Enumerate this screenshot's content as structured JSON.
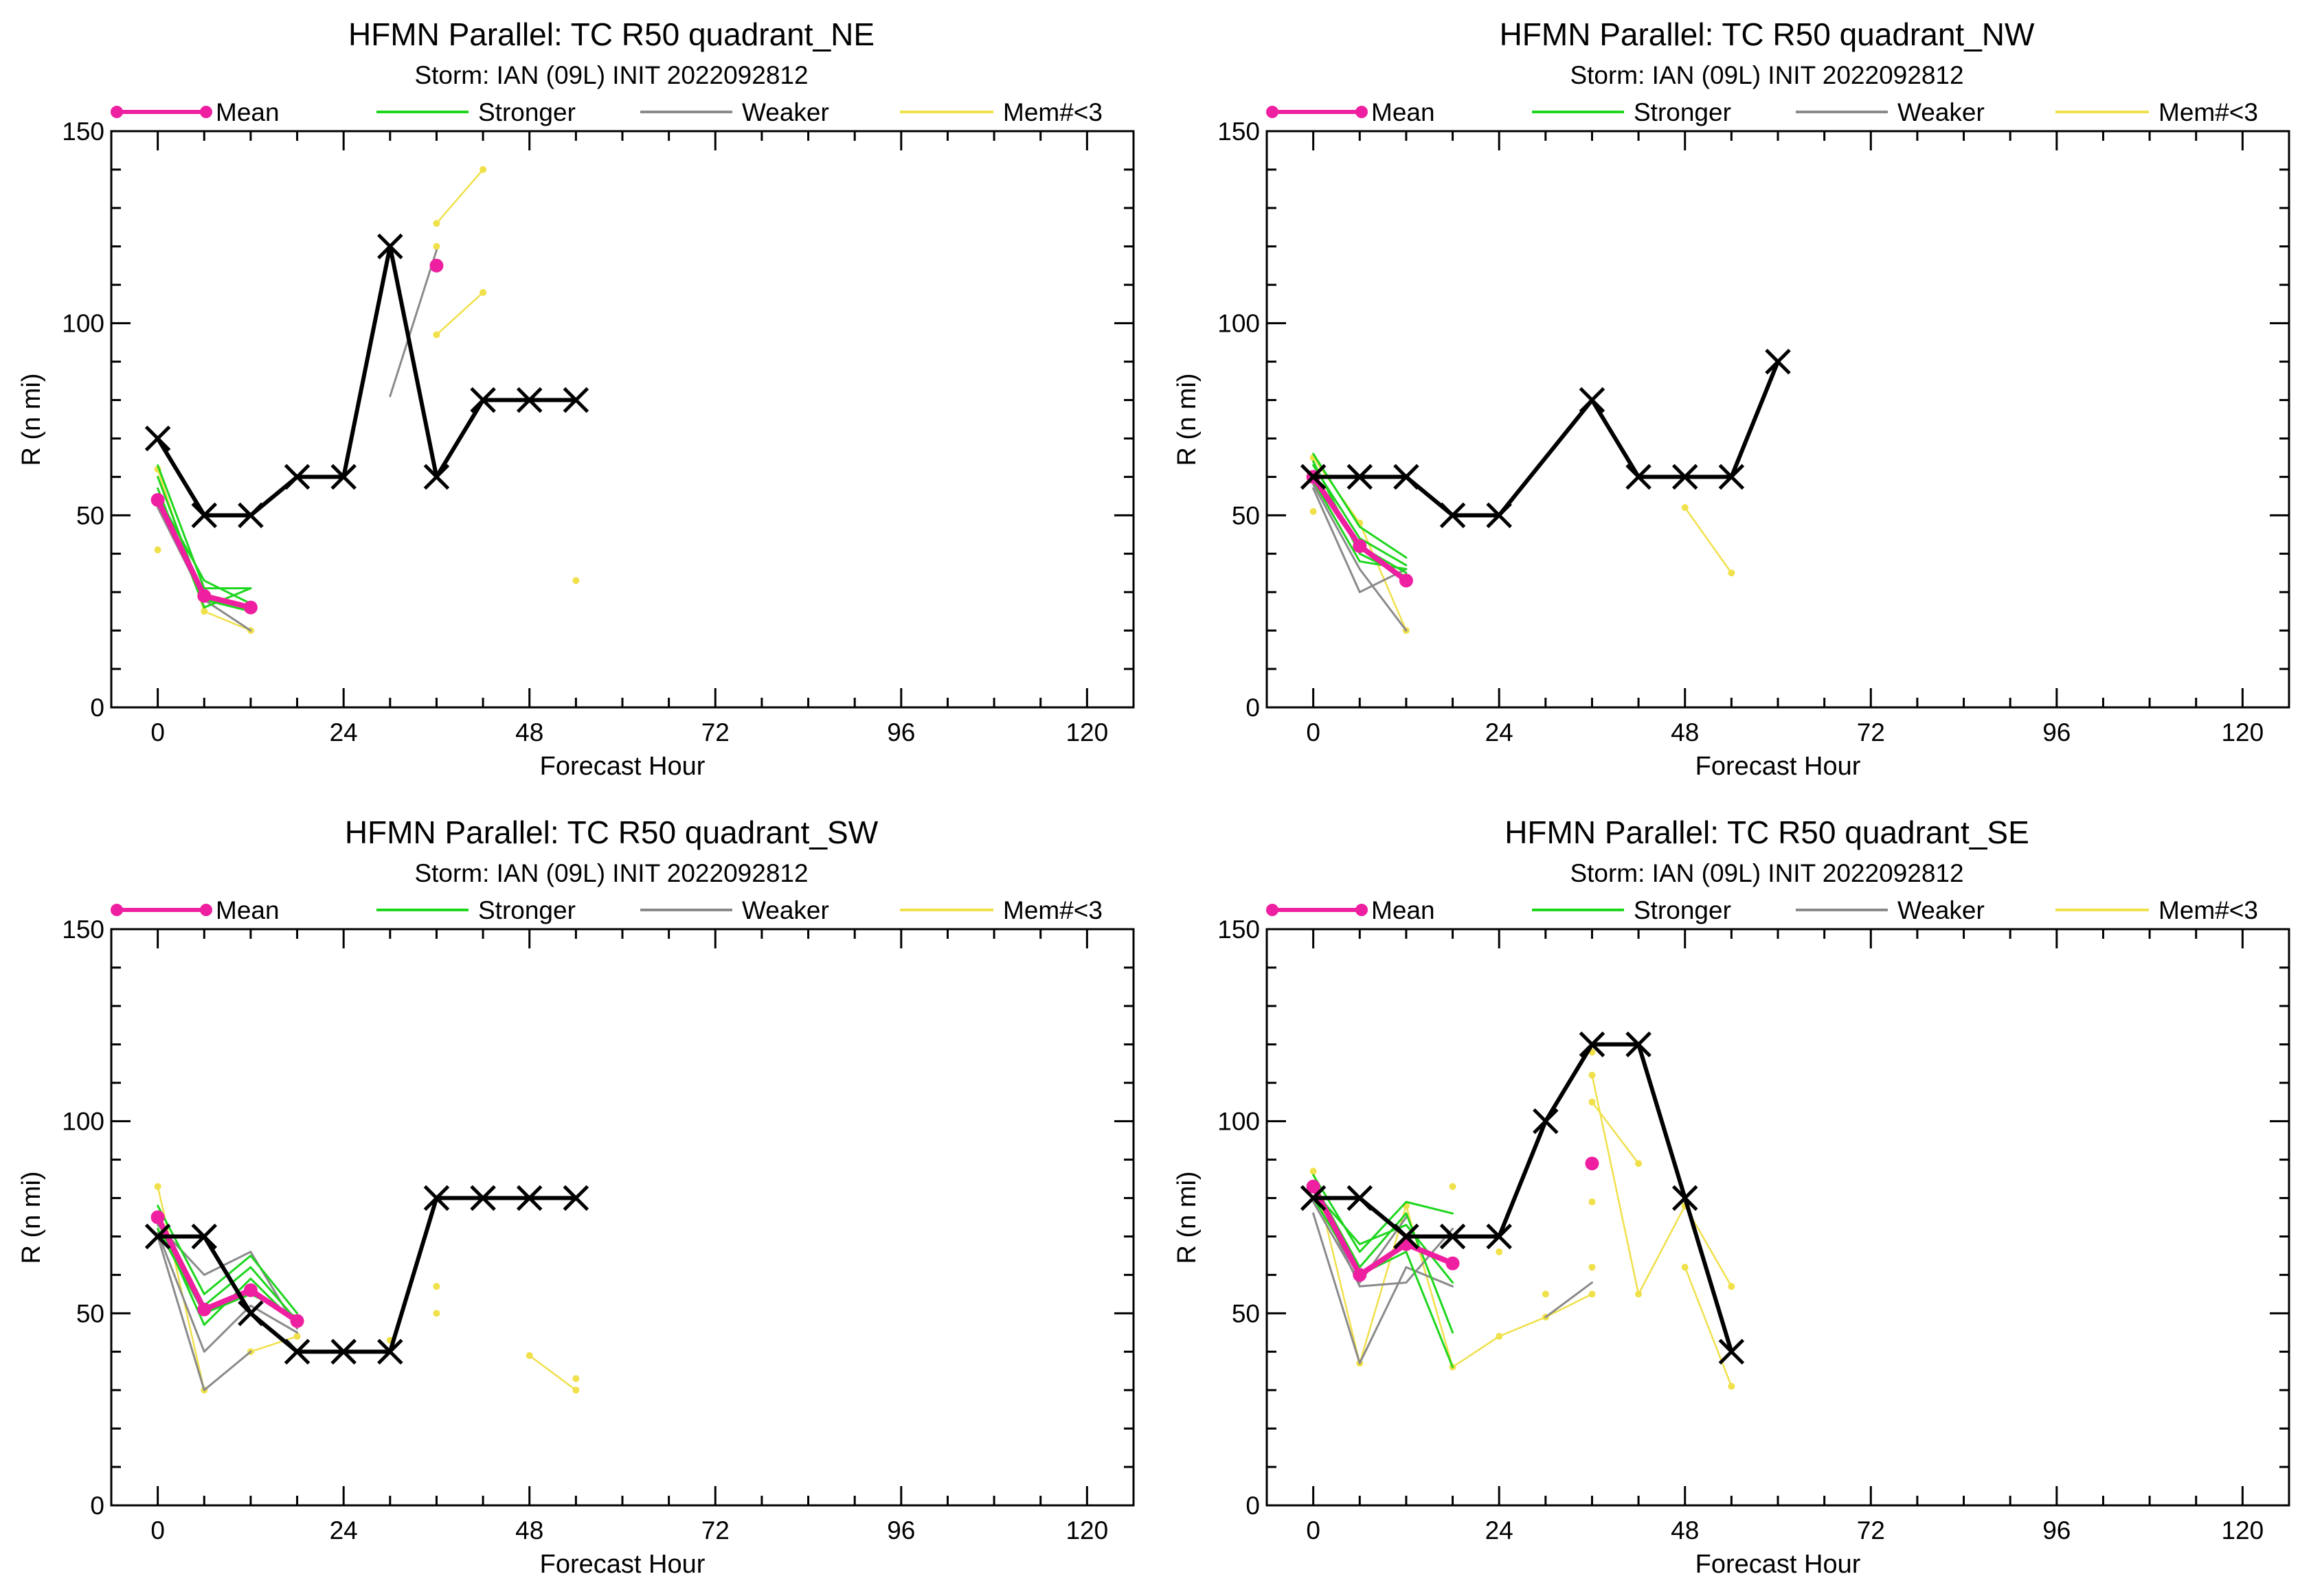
{
  "figure": {
    "legend_labels": {
      "mean": "Mean",
      "stronger": "Stronger",
      "weaker": "Weaker",
      "fewmembers": "Mem#<3"
    },
    "colors": {
      "mean": "#ee1fa0",
      "stronger": "#1ed61e",
      "weaker": "#8a8a8a",
      "fewmembers": "#f0e04a",
      "obs": "#000000"
    }
  },
  "chart_data": [
    {
      "type": "line",
      "title": "HFMN Parallel: TC  R50 quadrant_NE",
      "subtitle": "Storm: IAN (09L) INIT 2022092812",
      "xlabel": "Forecast Hour",
      "ylabel": "R (n mi)",
      "xlim": [
        -6,
        126
      ],
      "ylim": [
        0,
        150
      ],
      "xticks": [
        0,
        24,
        48,
        72,
        96,
        120
      ],
      "yticks": [
        0,
        50,
        100,
        150
      ],
      "legend_position": "top",
      "series": [
        {
          "role": "stronger",
          "x": [
            0,
            6,
            12
          ],
          "y": [
            63,
            31,
            31
          ]
        },
        {
          "role": "stronger",
          "x": [
            0,
            6,
            12
          ],
          "y": [
            60,
            28,
            25
          ]
        },
        {
          "role": "stronger",
          "x": [
            0,
            6,
            12
          ],
          "y": [
            57,
            26,
            31
          ]
        },
        {
          "role": "stronger",
          "x": [
            0,
            6,
            12
          ],
          "y": [
            55,
            33,
            27
          ]
        },
        {
          "role": "weaker",
          "x": [
            0,
            6,
            12
          ],
          "y": [
            52,
            28,
            20
          ]
        },
        {
          "role": "weaker",
          "x": [
            30,
            36
          ],
          "y": [
            81,
            119
          ]
        },
        {
          "role": "fewmembers",
          "x": [
            0,
            6,
            12
          ],
          "y": [
            62,
            25,
            20
          ]
        },
        {
          "role": "fewmembers",
          "x": [
            36,
            42
          ],
          "y": [
            126,
            140
          ]
        },
        {
          "role": "fewmembers",
          "x": [
            36,
            42
          ],
          "y": [
            97,
            108
          ]
        },
        {
          "role": "fewmembers",
          "x": [
            36
          ],
          "y": [
            120
          ]
        },
        {
          "role": "fewmembers",
          "x": [
            0
          ],
          "y": [
            41
          ]
        },
        {
          "role": "fewmembers",
          "x": [
            54
          ],
          "y": [
            33
          ]
        },
        {
          "role": "mean",
          "x": [
            0,
            6,
            12
          ],
          "y": [
            54,
            29,
            26
          ]
        },
        {
          "role": "mean",
          "x": [
            36
          ],
          "y": [
            115
          ]
        },
        {
          "role": "obs",
          "x": [
            0,
            6,
            12,
            18,
            24,
            30,
            36,
            42,
            48,
            54
          ],
          "y": [
            70,
            50,
            50,
            60,
            60,
            120,
            60,
            80,
            80,
            80
          ]
        }
      ]
    },
    {
      "type": "line",
      "title": "HFMN Parallel: TC  R50 quadrant_NW",
      "subtitle": "Storm: IAN (09L) INIT 2022092812",
      "xlabel": "Forecast Hour",
      "ylabel": "R (n mi)",
      "xlim": [
        -6,
        126
      ],
      "ylim": [
        0,
        150
      ],
      "xticks": [
        0,
        24,
        48,
        72,
        96,
        120
      ],
      "yticks": [
        0,
        50,
        100,
        150
      ],
      "legend_position": "top",
      "series": [
        {
          "role": "stronger",
          "x": [
            0,
            6,
            12
          ],
          "y": [
            66,
            47,
            39
          ]
        },
        {
          "role": "stronger",
          "x": [
            0,
            6,
            12
          ],
          "y": [
            63,
            44,
            37
          ]
        },
        {
          "role": "stronger",
          "x": [
            0,
            6,
            12
          ],
          "y": [
            61,
            42,
            35
          ]
        },
        {
          "role": "stronger",
          "x": [
            0,
            6,
            12
          ],
          "y": [
            59,
            38,
            36
          ]
        },
        {
          "role": "stronger",
          "x": [
            0,
            6,
            12
          ],
          "y": [
            64,
            40,
            34
          ]
        },
        {
          "role": "weaker",
          "x": [
            0,
            6,
            12
          ],
          "y": [
            57,
            30,
            36
          ]
        },
        {
          "role": "weaker",
          "x": [
            0,
            6,
            12
          ],
          "y": [
            58,
            36,
            20
          ]
        },
        {
          "role": "fewmembers",
          "x": [
            0,
            6,
            12
          ],
          "y": [
            65,
            48,
            20
          ]
        },
        {
          "role": "fewmembers",
          "x": [
            0
          ],
          "y": [
            51
          ]
        },
        {
          "role": "fewmembers",
          "x": [
            48,
            54
          ],
          "y": [
            52,
            35
          ]
        },
        {
          "role": "mean",
          "x": [
            0,
            6,
            12
          ],
          "y": [
            60,
            42,
            33
          ]
        },
        {
          "role": "obs",
          "x": [
            0,
            6,
            12,
            18,
            24,
            36,
            42,
            48,
            54,
            60
          ],
          "y": [
            60,
            60,
            60,
            50,
            50,
            80,
            60,
            60,
            60,
            90
          ]
        }
      ]
    },
    {
      "type": "line",
      "title": "HFMN Parallel: TC  R50 quadrant_SW",
      "subtitle": "Storm: IAN (09L) INIT 2022092812",
      "xlabel": "Forecast Hour",
      "ylabel": "R (n mi)",
      "xlim": [
        -6,
        126
      ],
      "ylim": [
        0,
        150
      ],
      "xticks": [
        0,
        24,
        48,
        72,
        96,
        120
      ],
      "yticks": [
        0,
        50,
        100,
        150
      ],
      "legend_position": "top",
      "series": [
        {
          "role": "stronger",
          "x": [
            0,
            6,
            12,
            18
          ],
          "y": [
            78,
            55,
            65,
            50
          ]
        },
        {
          "role": "stronger",
          "x": [
            0,
            6,
            12,
            18
          ],
          "y": [
            74,
            47,
            59,
            47
          ]
        },
        {
          "role": "stronger",
          "x": [
            0,
            6,
            12,
            18
          ],
          "y": [
            76,
            52,
            62,
            48
          ]
        },
        {
          "role": "stronger",
          "x": [
            0,
            6,
            12,
            18
          ],
          "y": [
            72,
            50,
            55,
            49
          ]
        },
        {
          "role": "weaker",
          "x": [
            0,
            6,
            12
          ],
          "y": [
            70,
            30,
            40
          ]
        },
        {
          "role": "weaker",
          "x": [
            0,
            6,
            12,
            18
          ],
          "y": [
            71,
            40,
            52,
            45
          ]
        },
        {
          "role": "weaker",
          "x": [
            0,
            6,
            12,
            18
          ],
          "y": [
            73,
            60,
            66,
            46
          ]
        },
        {
          "role": "fewmembers",
          "x": [
            0,
            6,
            12,
            18
          ],
          "y": [
            83,
            30,
            40,
            44
          ]
        },
        {
          "role": "fewmembers",
          "x": [
            30
          ],
          "y": [
            43
          ]
        },
        {
          "role": "fewmembers",
          "x": [
            36
          ],
          "y": [
            57
          ]
        },
        {
          "role": "fewmembers",
          "x": [
            36
          ],
          "y": [
            50
          ]
        },
        {
          "role": "fewmembers",
          "x": [
            48,
            54
          ],
          "y": [
            39,
            30
          ]
        },
        {
          "role": "fewmembers",
          "x": [
            54
          ],
          "y": [
            33
          ]
        },
        {
          "role": "mean",
          "x": [
            0,
            6,
            12,
            18
          ],
          "y": [
            75,
            51,
            56,
            48
          ]
        },
        {
          "role": "obs",
          "x": [
            0,
            6,
            12,
            18,
            24,
            30,
            36,
            42,
            48,
            54
          ],
          "y": [
            70,
            70,
            50,
            40,
            40,
            40,
            80,
            80,
            80,
            80
          ]
        }
      ]
    },
    {
      "type": "line",
      "title": "HFMN Parallel: TC  R50 quadrant_SE",
      "subtitle": "Storm: IAN (09L) INIT 2022092812",
      "xlabel": "Forecast Hour",
      "ylabel": "R (n mi)",
      "xlim": [
        -6,
        126
      ],
      "ylim": [
        0,
        150
      ],
      "xticks": [
        0,
        24,
        48,
        72,
        96,
        120
      ],
      "yticks": [
        0,
        50,
        100,
        150
      ],
      "legend_position": "top",
      "series": [
        {
          "role": "stronger",
          "x": [
            0,
            6,
            12,
            18
          ],
          "y": [
            86,
            66,
            79,
            76
          ]
        },
        {
          "role": "stronger",
          "x": [
            0,
            6,
            12,
            18
          ],
          "y": [
            84,
            62,
            76,
            45
          ]
        },
        {
          "role": "stronger",
          "x": [
            0,
            6,
            12,
            18
          ],
          "y": [
            82,
            68,
            73,
            58
          ]
        },
        {
          "role": "stronger",
          "x": [
            0,
            6,
            12,
            18
          ],
          "y": [
            80,
            60,
            66,
            36
          ]
        },
        {
          "role": "weaker",
          "x": [
            0,
            6,
            12,
            18
          ],
          "y": [
            76,
            37,
            62,
            57
          ]
        },
        {
          "role": "weaker",
          "x": [
            0,
            6,
            12,
            18
          ],
          "y": [
            83,
            57,
            58,
            72
          ]
        },
        {
          "role": "weaker",
          "x": [
            0,
            6,
            12
          ],
          "y": [
            79,
            58,
            75
          ]
        },
        {
          "role": "weaker",
          "x": [
            30,
            36
          ],
          "y": [
            49,
            58
          ]
        },
        {
          "role": "fewmembers",
          "x": [
            0,
            6,
            12,
            18,
            24,
            30,
            36
          ],
          "y": [
            87,
            37,
            78,
            36,
            44,
            49,
            55
          ]
        },
        {
          "role": "fewmembers",
          "x": [
            36,
            42,
            48,
            54
          ],
          "y": [
            112,
            55,
            78,
            57
          ]
        },
        {
          "role": "fewmembers",
          "x": [
            36,
            42
          ],
          "y": [
            105,
            89
          ]
        },
        {
          "role": "fewmembers",
          "x": [
            48,
            54
          ],
          "y": [
            62,
            31
          ]
        },
        {
          "role": "fewmembers",
          "x": [
            36
          ],
          "y": [
            118
          ]
        },
        {
          "role": "fewmembers",
          "x": [
            36
          ],
          "y": [
            79
          ]
        },
        {
          "role": "fewmembers",
          "x": [
            36
          ],
          "y": [
            62
          ]
        },
        {
          "role": "fewmembers",
          "x": [
            30
          ],
          "y": [
            55
          ]
        },
        {
          "role": "fewmembers",
          "x": [
            24
          ],
          "y": [
            66
          ]
        },
        {
          "role": "fewmembers",
          "x": [
            18
          ],
          "y": [
            83
          ]
        },
        {
          "role": "mean",
          "x": [
            0,
            6,
            12,
            18
          ],
          "y": [
            83,
            60,
            68,
            63
          ]
        },
        {
          "role": "mean",
          "x": [
            36
          ],
          "y": [
            89
          ]
        },
        {
          "role": "obs",
          "x": [
            0,
            6,
            12,
            18,
            24,
            30,
            36,
            42,
            48,
            54
          ],
          "y": [
            80,
            80,
            70,
            70,
            70,
            100,
            120,
            120,
            80,
            40
          ]
        }
      ]
    }
  ]
}
